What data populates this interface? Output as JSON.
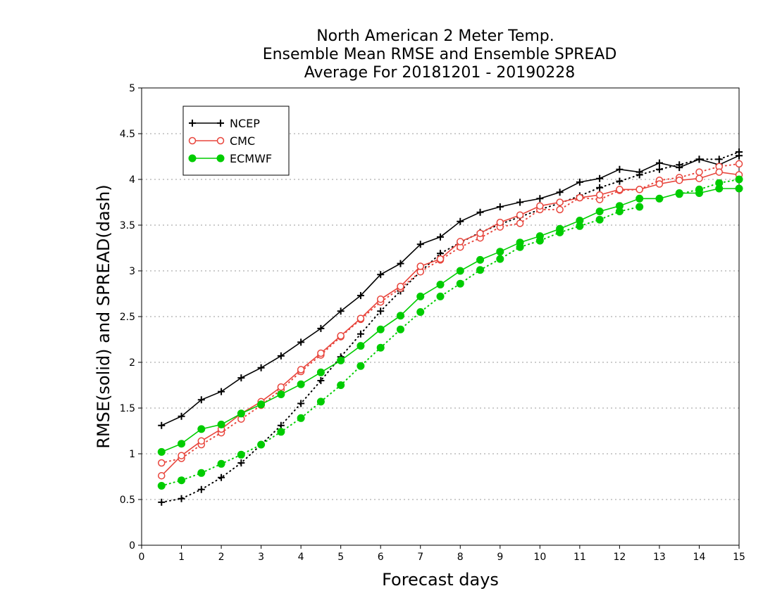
{
  "chart_data": {
    "type": "line",
    "title_lines": [
      "North American 2 Meter Temp.",
      "Ensemble Mean RMSE and Ensemble SPREAD",
      "Average For 20181201 - 20190228"
    ],
    "xlabel": "Forecast days",
    "ylabel": "RMSE(solid) and SPREAD(dash)",
    "xlim": [
      0,
      15
    ],
    "ylim": [
      0,
      5
    ],
    "x_ticks": [
      "0",
      "1",
      "2",
      "3",
      "4",
      "5",
      "6",
      "7",
      "8",
      "9",
      "10",
      "11",
      "12",
      "13",
      "14",
      "15"
    ],
    "y_ticks": [
      "0",
      "0.5",
      "1",
      "1.5",
      "2",
      "2.5",
      "3",
      "3.5",
      "4",
      "4.5",
      "5"
    ],
    "grid": true,
    "legend_position": "top-left",
    "x": [
      0.5,
      1,
      1.5,
      2,
      2.5,
      3,
      3.5,
      4,
      4.5,
      5,
      5.5,
      6,
      6.5,
      7,
      7.5,
      8,
      8.5,
      9,
      9.5,
      10,
      10.5,
      11,
      11.5,
      12,
      12.5,
      13,
      13.5,
      14,
      14.5,
      15
    ],
    "series": [
      {
        "name": "NCEP",
        "color": "#000000",
        "marker": "plus",
        "rmse": [
          1.31,
          1.41,
          1.59,
          1.68,
          1.83,
          1.94,
          2.07,
          2.22,
          2.37,
          2.56,
          2.73,
          2.96,
          3.08,
          3.29,
          3.37,
          3.54,
          3.64,
          3.7,
          3.75,
          3.79,
          3.86,
          3.97,
          4.01,
          4.11,
          4.08,
          4.18,
          4.13,
          4.22,
          4.16,
          4.26
        ],
        "spread": [
          0.47,
          0.51,
          0.61,
          0.74,
          0.9,
          1.1,
          1.31,
          1.55,
          1.8,
          2.06,
          2.31,
          2.56,
          2.78,
          2.99,
          3.19,
          3.31,
          3.42,
          3.51,
          3.59,
          3.67,
          3.74,
          3.82,
          3.91,
          3.98,
          4.05,
          4.11,
          4.16,
          4.22,
          4.22,
          4.3
        ]
      },
      {
        "name": "CMC",
        "color": "#e8453c",
        "marker": "circle-open",
        "rmse": [
          0.76,
          0.98,
          1.14,
          1.27,
          1.44,
          1.57,
          1.73,
          1.92,
          2.1,
          2.29,
          2.48,
          2.69,
          2.83,
          3.05,
          3.13,
          3.32,
          3.41,
          3.53,
          3.61,
          3.71,
          3.75,
          3.8,
          3.83,
          3.89,
          3.89,
          3.95,
          3.99,
          4.01,
          4.08,
          4.05
        ],
        "spread": [
          0.9,
          0.95,
          1.1,
          1.23,
          1.38,
          1.53,
          1.7,
          1.9,
          2.08,
          2.28,
          2.47,
          2.66,
          2.81,
          2.99,
          3.12,
          3.26,
          3.36,
          3.48,
          3.52,
          3.67,
          3.67,
          3.8,
          3.78,
          3.88,
          3.89,
          3.99,
          4.02,
          4.08,
          4.14,
          4.17
        ]
      },
      {
        "name": "ECMWF",
        "color": "#00cc00",
        "marker": "circle-filled",
        "rmse": [
          1.02,
          1.11,
          1.27,
          1.32,
          1.44,
          1.54,
          1.65,
          1.76,
          1.89,
          2.02,
          2.18,
          2.36,
          2.51,
          2.72,
          2.85,
          3.0,
          3.12,
          3.21,
          3.31,
          3.38,
          3.46,
          3.55,
          3.65,
          3.71,
          3.79,
          3.79,
          3.85,
          3.85,
          3.9,
          3.9
        ],
        "spread": [
          0.65,
          0.71,
          0.79,
          0.89,
          0.99,
          1.1,
          1.24,
          1.39,
          1.57,
          1.75,
          1.96,
          2.16,
          2.36,
          2.55,
          2.72,
          2.86,
          3.01,
          3.13,
          3.26,
          3.33,
          3.42,
          3.49,
          3.56,
          3.65,
          3.7,
          null,
          3.84,
          3.89,
          3.96,
          4.0
        ]
      }
    ]
  }
}
